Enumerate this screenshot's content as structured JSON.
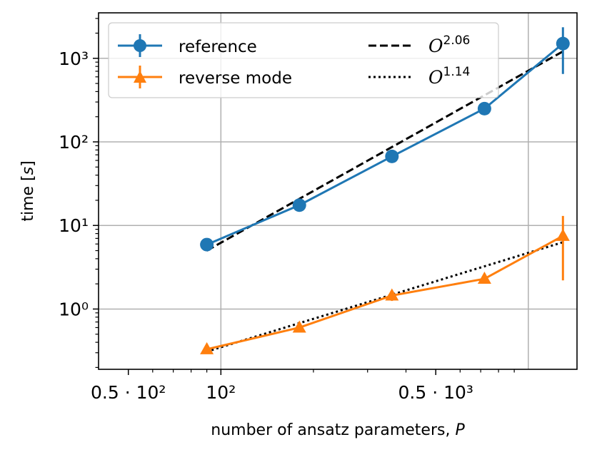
{
  "chart_data": {
    "type": "line",
    "title": "",
    "xlabel": "number of ansatz parameters, ",
    "xlabel_var": "P",
    "ylabel": "time [",
    "ylabel_var": "s",
    "ylabel_end": "]",
    "xscale": "log",
    "yscale": "log",
    "xlim": [
      40,
      1440
    ],
    "ylim": [
      0.19,
      3500
    ],
    "grid": true,
    "legend_position": "top-left",
    "x_ticks": [
      {
        "value": 50,
        "label": "0.5 · 10²"
      },
      {
        "value": 100,
        "label": "10²"
      },
      {
        "value": 500,
        "label": "0.5 · 10³"
      }
    ],
    "y_ticks": [
      {
        "value": 1,
        "label": "10⁰"
      },
      {
        "value": 10,
        "label": "10¹"
      },
      {
        "value": 100,
        "label": "10²"
      },
      {
        "value": 1000,
        "label": "10³"
      }
    ],
    "series": [
      {
        "name": "reference",
        "color": "#1f77b4",
        "marker": "circle",
        "x": [
          90,
          180,
          360,
          720,
          1296
        ],
        "y": [
          5.9,
          17.5,
          67,
          250,
          1500
        ],
        "error_low": [
          null,
          null,
          null,
          null,
          650
        ],
        "error_high": [
          null,
          null,
          null,
          null,
          2350
        ]
      },
      {
        "name": "reverse mode",
        "color": "#ff7f0e",
        "marker": "triangle",
        "x": [
          90,
          180,
          360,
          720,
          1296
        ],
        "y": [
          0.33,
          0.6,
          1.45,
          2.3,
          7.5
        ],
        "error_low": [
          null,
          null,
          1.25,
          null,
          2.2
        ],
        "error_high": [
          null,
          null,
          1.65,
          null,
          13
        ]
      }
    ],
    "fits": [
      {
        "name": "O^2.06",
        "base": "O",
        "exponent": "2.06",
        "style": "dashed",
        "color": "#000000",
        "x": [
          90,
          1296
        ],
        "y": [
          5.0,
          1210
        ]
      },
      {
        "name": "O^1.14",
        "base": "O",
        "exponent": "1.14",
        "style": "dotted",
        "color": "#000000",
        "x": [
          90,
          1296
        ],
        "y": [
          0.31,
          6.3
        ]
      }
    ]
  }
}
